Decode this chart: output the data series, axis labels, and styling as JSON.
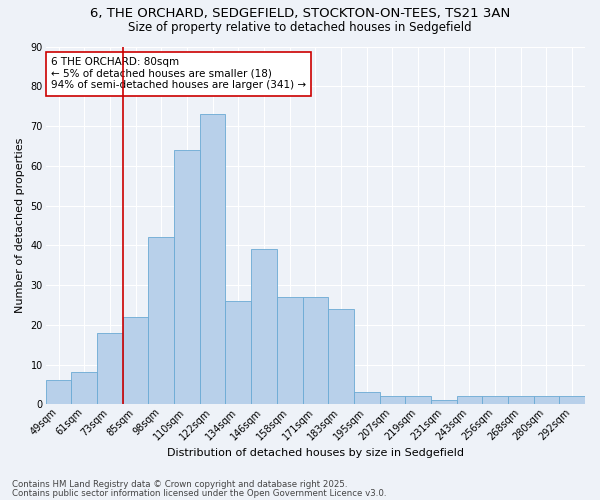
{
  "title1": "6, THE ORCHARD, SEDGEFIELD, STOCKTON-ON-TEES, TS21 3AN",
  "title2": "Size of property relative to detached houses in Sedgefield",
  "xlabel": "Distribution of detached houses by size in Sedgefield",
  "ylabel": "Number of detached properties",
  "categories": [
    "49sqm",
    "61sqm",
    "73sqm",
    "85sqm",
    "98sqm",
    "110sqm",
    "122sqm",
    "134sqm",
    "146sqm",
    "158sqm",
    "171sqm",
    "183sqm",
    "195sqm",
    "207sqm",
    "219sqm",
    "231sqm",
    "243sqm",
    "256sqm",
    "268sqm",
    "280sqm",
    "292sqm"
  ],
  "values": [
    6,
    8,
    18,
    22,
    42,
    64,
    73,
    26,
    39,
    27,
    27,
    24,
    3,
    2,
    2,
    1,
    2,
    2,
    2,
    2,
    2
  ],
  "bar_color": "#b8d0ea",
  "bar_edge_color": "#6aaad4",
  "vline_x": 2.5,
  "vline_color": "#cc0000",
  "annotation_text": "6 THE ORCHARD: 80sqm\n← 5% of detached houses are smaller (18)\n94% of semi-detached houses are larger (341) →",
  "annotation_box_facecolor": "#ffffff",
  "annotation_box_edge": "#cc0000",
  "ylim": [
    0,
    90
  ],
  "yticks": [
    0,
    10,
    20,
    30,
    40,
    50,
    60,
    70,
    80,
    90
  ],
  "footer1": "Contains HM Land Registry data © Crown copyright and database right 2025.",
  "footer2": "Contains public sector information licensed under the Open Government Licence v3.0.",
  "bg_color": "#eef2f8",
  "grid_color": "#ffffff",
  "title_fontsize": 9.5,
  "subtitle_fontsize": 8.5,
  "axis_label_fontsize": 8,
  "tick_fontsize": 7,
  "annotation_fontsize": 7.5,
  "footer_fontsize": 6.2
}
